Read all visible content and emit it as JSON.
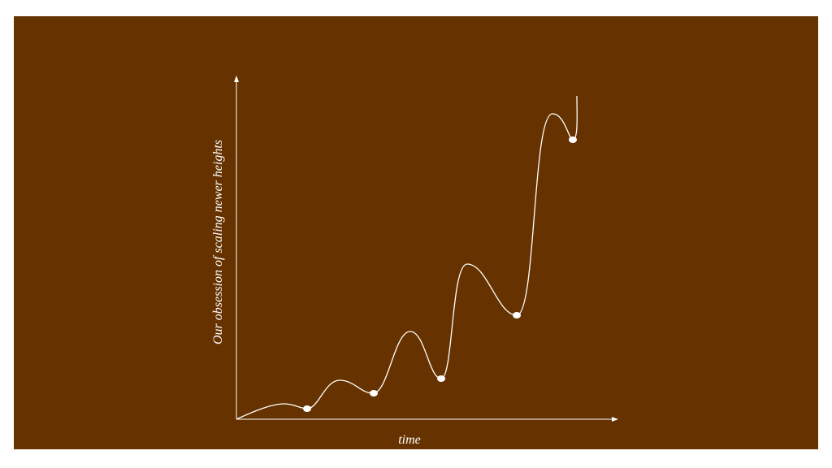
{
  "axes": {
    "y_label": "Our obsession of scaling newer heights",
    "x_label": "time"
  }
}
